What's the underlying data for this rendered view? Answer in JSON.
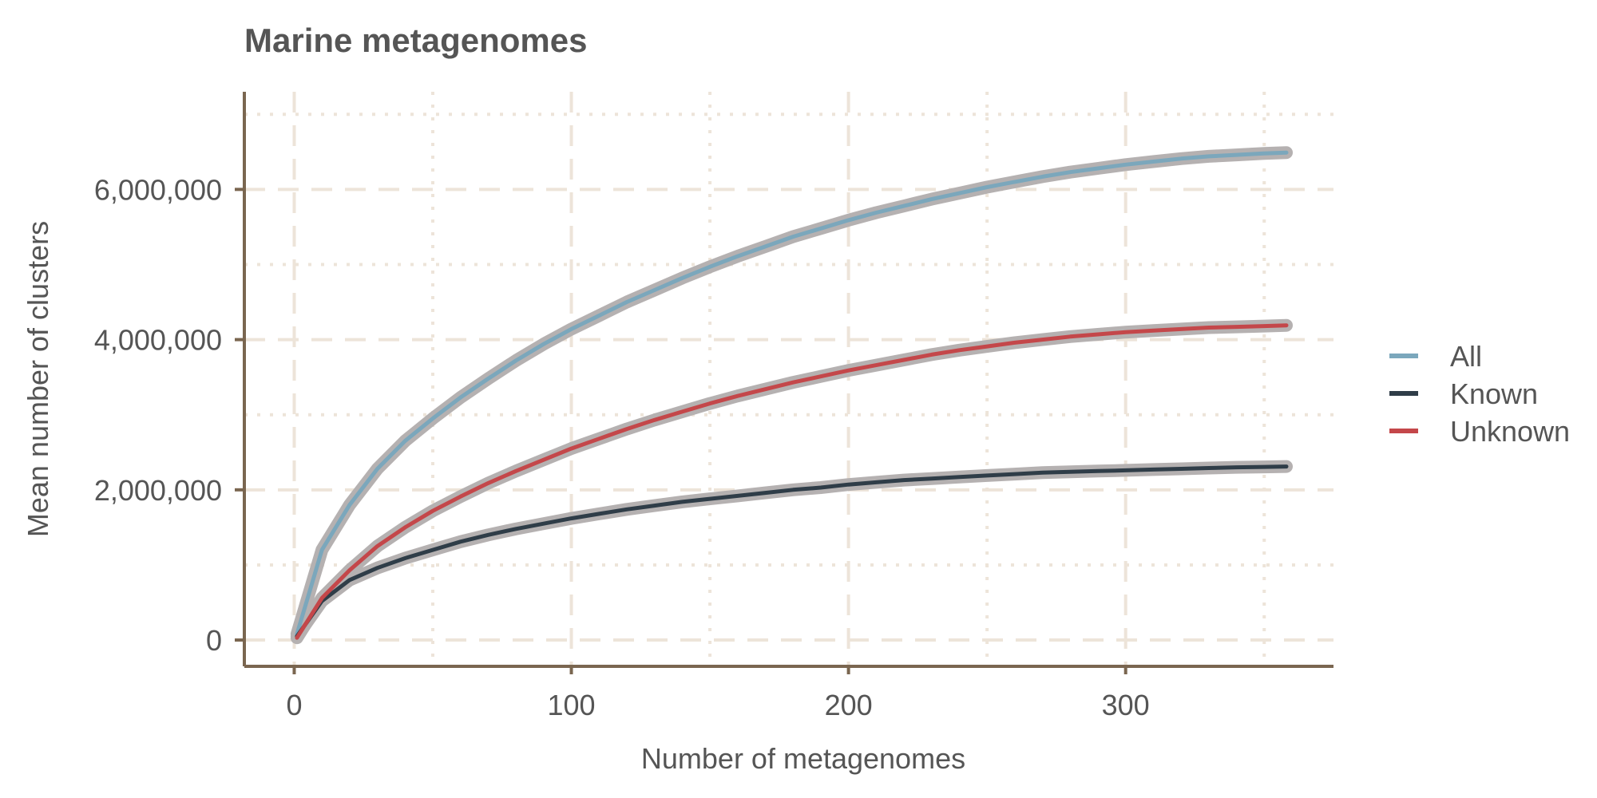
{
  "chart_data": {
    "type": "line",
    "title": "Marine metagenomes",
    "xlabel": "Number of metagenomes",
    "ylabel": "Mean number of clusters",
    "xlim": [
      -18,
      375
    ],
    "ylim": [
      -350000,
      7300000
    ],
    "x_ticks": [
      0,
      100,
      200,
      300
    ],
    "x_tick_labels": [
      "0",
      "100",
      "200",
      "300"
    ],
    "x_minor_ticks": [
      50,
      150,
      250,
      350
    ],
    "y_ticks": [
      0,
      2000000,
      4000000,
      6000000
    ],
    "y_tick_labels": [
      "0",
      "2,000,000",
      "4,000,000",
      "6,000,000"
    ],
    "y_minor_ticks": [
      1000000,
      3000000,
      5000000,
      7000000
    ],
    "grid": true,
    "legend_position": "right",
    "x": [
      1,
      10,
      20,
      30,
      40,
      50,
      60,
      70,
      80,
      90,
      100,
      110,
      120,
      130,
      140,
      150,
      160,
      170,
      180,
      190,
      200,
      210,
      220,
      230,
      240,
      250,
      260,
      270,
      280,
      290,
      300,
      310,
      320,
      330,
      340,
      350,
      358
    ],
    "series": [
      {
        "name": "All",
        "color": "#7BA7BC",
        "values": [
          80000,
          1200000,
          1800000,
          2280000,
          2650000,
          2950000,
          3230000,
          3480000,
          3720000,
          3940000,
          4140000,
          4320000,
          4500000,
          4660000,
          4820000,
          4970000,
          5110000,
          5240000,
          5370000,
          5480000,
          5590000,
          5690000,
          5780000,
          5870000,
          5950000,
          6030000,
          6100000,
          6170000,
          6230000,
          6280000,
          6330000,
          6370000,
          6410000,
          6440000,
          6460000,
          6480000,
          6490000
        ]
      },
      {
        "name": "Known",
        "color": "#2F3D48",
        "values": [
          50000,
          520000,
          800000,
          960000,
          1090000,
          1200000,
          1310000,
          1400000,
          1480000,
          1550000,
          1620000,
          1680000,
          1740000,
          1790000,
          1840000,
          1880000,
          1920000,
          1960000,
          2000000,
          2030000,
          2070000,
          2100000,
          2130000,
          2150000,
          2170000,
          2190000,
          2210000,
          2230000,
          2240000,
          2250000,
          2260000,
          2270000,
          2280000,
          2290000,
          2300000,
          2305000,
          2310000
        ]
      },
      {
        "name": "Unknown",
        "color": "#C4474A",
        "values": [
          30000,
          560000,
          930000,
          1250000,
          1500000,
          1720000,
          1910000,
          2090000,
          2250000,
          2400000,
          2550000,
          2680000,
          2810000,
          2930000,
          3040000,
          3150000,
          3250000,
          3340000,
          3430000,
          3510000,
          3590000,
          3660000,
          3730000,
          3800000,
          3860000,
          3910000,
          3960000,
          4000000,
          4040000,
          4070000,
          4100000,
          4120000,
          4140000,
          4160000,
          4170000,
          4180000,
          4190000
        ]
      }
    ]
  }
}
